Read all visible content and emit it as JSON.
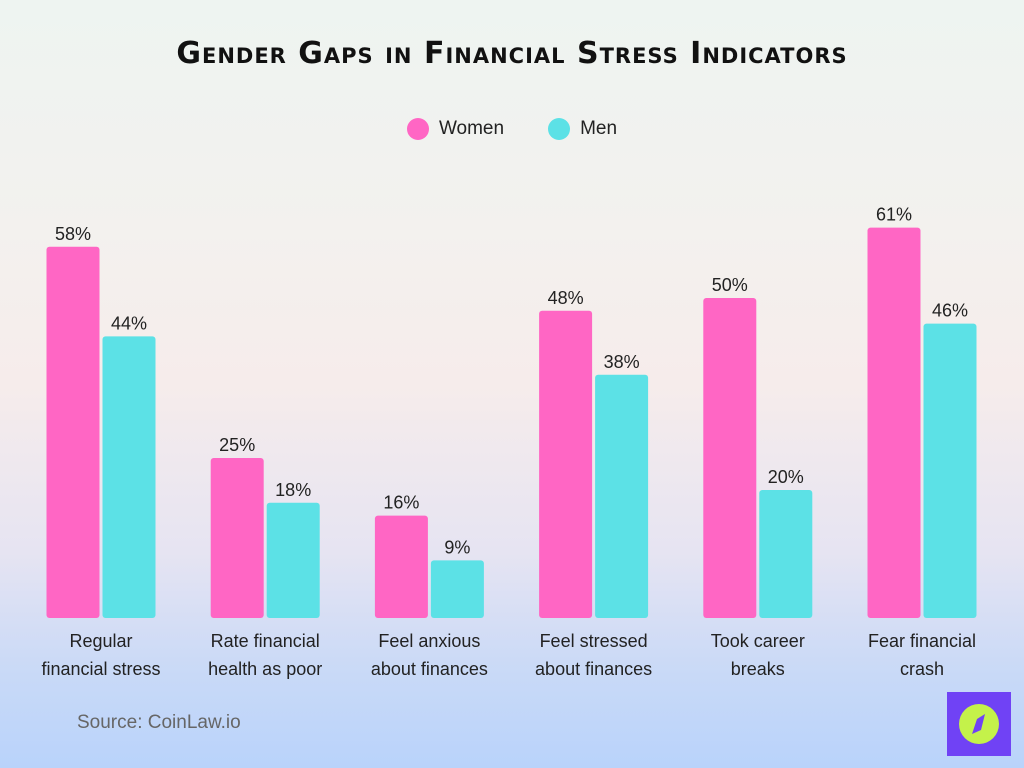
{
  "chart_data": {
    "type": "bar",
    "title": "Gender Gaps in Financial Stress Indicators",
    "categories": [
      [
        "Regular",
        "financial stress"
      ],
      [
        "Rate financial",
        "health as poor"
      ],
      [
        "Feel anxious",
        "about finances"
      ],
      [
        "Feel stressed",
        "about finances"
      ],
      [
        "Took career",
        "breaks"
      ],
      [
        "Fear financial",
        "crash"
      ]
    ],
    "series": [
      {
        "name": "Women",
        "color": "#ff66c4",
        "values": [
          58,
          25,
          16,
          48,
          50,
          61
        ]
      },
      {
        "name": "Men",
        "color": "#5ce1e6",
        "values": [
          44,
          18,
          9,
          38,
          20,
          46
        ]
      }
    ],
    "value_suffix": "%",
    "ylim": [
      0,
      61
    ],
    "grid": false,
    "legend_position": "top-center"
  },
  "source": "Source: CoinLaw.io",
  "logo": {
    "icon": "compass-icon",
    "bg": "#7042f5",
    "fg": "#c4f24a"
  }
}
